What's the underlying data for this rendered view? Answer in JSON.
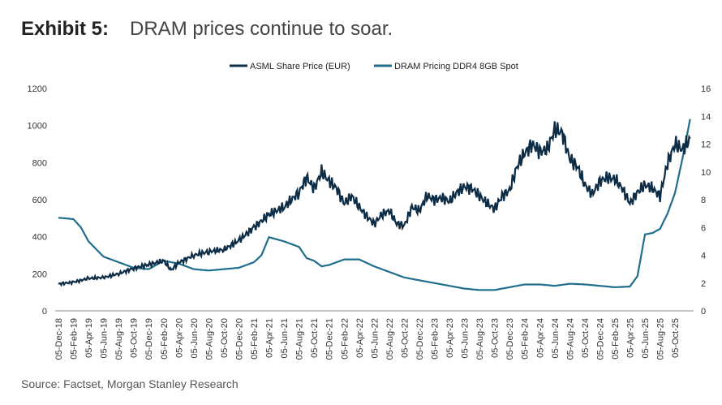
{
  "title": {
    "label": "Exhibit 5:",
    "text": "DRAM prices continue to soar."
  },
  "source": "Source: Factset, Morgan Stanley Research",
  "chart_data": {
    "type": "line",
    "title": "DRAM prices continue to soar.",
    "legend_position": "top-center",
    "colors": {
      "asml": "#0d2c45",
      "dram": "#1f6e8c"
    },
    "x_tick_labels": [
      "05-Dec-18",
      "05-Feb-19",
      "05-Apr-19",
      "05-Jun-19",
      "05-Aug-19",
      "05-Oct-19",
      "05-Dec-19",
      "05-Feb-20",
      "05-Apr-20",
      "05-Jun-20",
      "05-Aug-20",
      "05-Oct-20",
      "05-Dec-20",
      "05-Feb-21",
      "05-Apr-21",
      "05-Jun-21",
      "05-Aug-21",
      "05-Oct-21",
      "05-Dec-21",
      "05-Feb-22",
      "05-Apr-22",
      "05-Jun-22",
      "05-Aug-22",
      "05-Oct-22",
      "05-Dec-22",
      "05-Feb-23",
      "05-Apr-23",
      "05-Jun-23",
      "05-Aug-23",
      "05-Oct-23",
      "05-Dec-23",
      "05-Feb-24",
      "05-Apr-24",
      "05-Jun-24",
      "05-Aug-24",
      "05-Oct-24",
      "05-Dec-24",
      "05-Feb-25",
      "05-Apr-25",
      "05-Jun-25",
      "05-Aug-25",
      "05-Oct-25"
    ],
    "y_left": {
      "ylim": [
        0,
        1200
      ],
      "ticks": [
        "0",
        "200",
        "400",
        "600",
        "800",
        "1000",
        "1200"
      ]
    },
    "y_right": {
      "ylim": [
        0,
        16
      ],
      "ticks": [
        "0",
        "2",
        "4",
        "6",
        "8",
        "10",
        "12",
        "14",
        "16"
      ]
    },
    "series": [
      {
        "name": "ASML Share Price (EUR)",
        "axis": "left",
        "x_months_since_dec18": [
          0,
          2,
          4,
          6,
          8,
          10,
          12,
          14,
          15,
          16,
          18,
          20,
          22,
          24,
          26,
          28,
          30,
          32,
          33,
          34,
          35,
          36,
          37,
          38,
          39,
          40,
          41,
          42,
          43,
          44,
          45,
          46,
          47,
          48,
          49,
          50,
          51,
          52,
          53,
          54,
          55,
          56,
          57,
          58,
          59,
          60,
          61,
          62,
          63,
          64,
          65,
          66,
          67,
          68,
          69,
          70,
          71,
          72,
          73,
          74,
          75,
          76,
          77,
          78,
          79,
          80,
          81,
          82,
          83,
          84
        ],
        "values": [
          145,
          155,
          175,
          180,
          200,
          230,
          250,
          270,
          220,
          260,
          300,
          320,
          330,
          380,
          450,
          520,
          560,
          640,
          720,
          660,
          750,
          700,
          660,
          580,
          620,
          560,
          510,
          470,
          520,
          540,
          470,
          460,
          560,
          540,
          620,
          600,
          610,
          590,
          640,
          670,
          660,
          620,
          580,
          550,
          620,
          650,
          780,
          850,
          900,
          860,
          870,
          980,
          960,
          820,
          780,
          680,
          630,
          700,
          720,
          710,
          660,
          580,
          640,
          680,
          660,
          620,
          800,
          900,
          870,
          930
        ]
      },
      {
        "name": "DRAM Pricing DDR4 8GB Spot",
        "axis": "right",
        "x_months_since_dec18": [
          0,
          2,
          3,
          4,
          6,
          8,
          10,
          12,
          14,
          16,
          18,
          20,
          22,
          24,
          26,
          27,
          28,
          30,
          32,
          33,
          34,
          35,
          36,
          38,
          40,
          42,
          44,
          46,
          48,
          50,
          52,
          54,
          56,
          58,
          60,
          62,
          64,
          66,
          68,
          70,
          72,
          74,
          76,
          77,
          78,
          79,
          80,
          81,
          82,
          83,
          84
        ],
        "values": [
          6.7,
          6.6,
          6.0,
          5.0,
          3.9,
          3.5,
          3.1,
          3.0,
          3.6,
          3.4,
          3.0,
          2.9,
          3.0,
          3.1,
          3.5,
          4.0,
          5.3,
          5.0,
          4.6,
          3.8,
          3.6,
          3.2,
          3.3,
          3.7,
          3.7,
          3.2,
          2.8,
          2.4,
          2.2,
          2.0,
          1.8,
          1.6,
          1.5,
          1.5,
          1.7,
          1.9,
          1.9,
          1.8,
          1.95,
          1.9,
          1.8,
          1.7,
          1.75,
          2.5,
          5.5,
          5.6,
          5.9,
          7.0,
          8.5,
          11.0,
          13.8
        ]
      }
    ]
  }
}
